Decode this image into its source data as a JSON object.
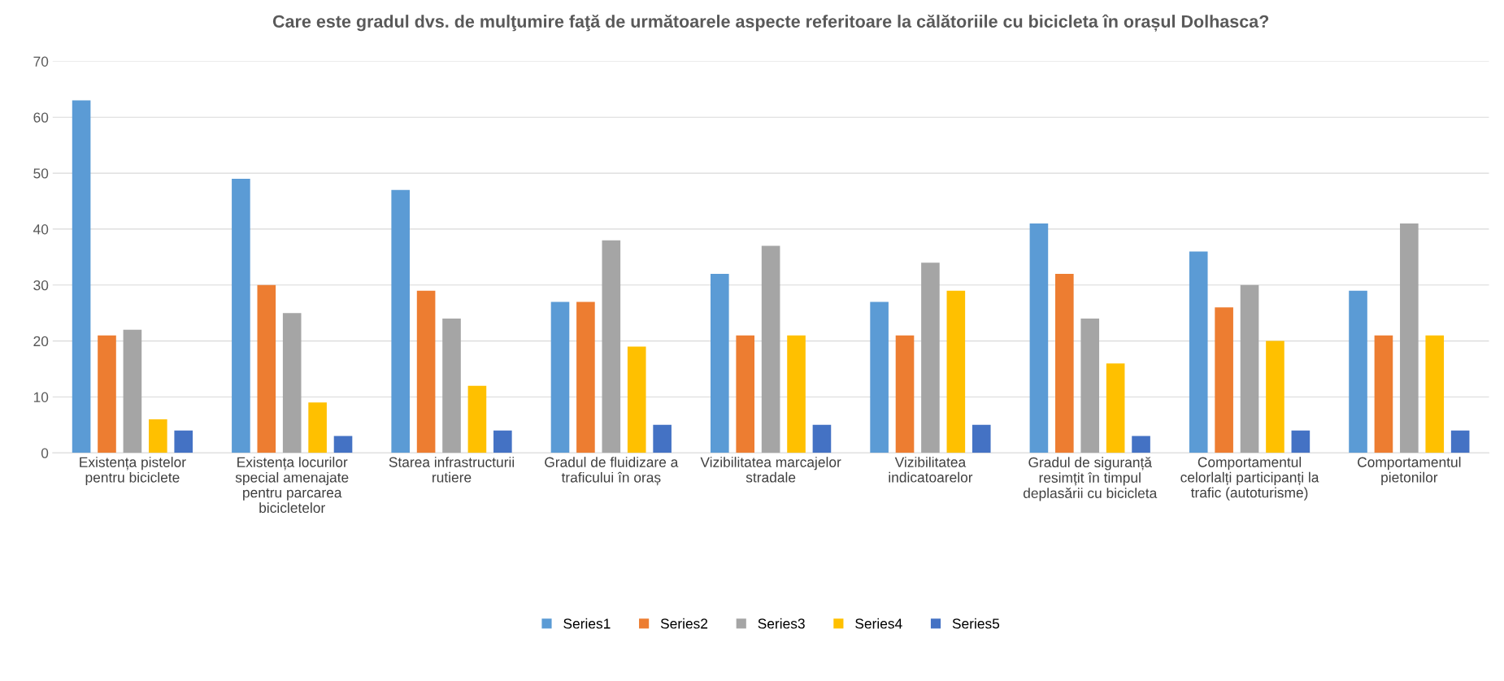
{
  "chart_data": {
    "type": "bar",
    "title": "Care este gradul dvs. de mulţumire faţă de următoarele aspecte referitoare la călătoriile cu bicicleta în orașul Dolhasca?",
    "categories": [
      "Existența pistelor\npentru biciclete",
      "Existența locurilor\nspecial amenajate\npentru parcarea\nbicicletelor",
      "Starea infrastructurii\nrutiere",
      "Gradul de fluidizare a\ntraficului în oraș",
      "Vizibilitatea marcajelor\nstradale",
      "Vizibilitatea\nindicatoarelor",
      "Gradul de siguranță\nresimțit în timpul\ndeplasării cu bicicleta",
      "Comportamentul\ncelorlalți participanți la\ntrafic (autoturisme)",
      "Comportamentul\npietonilor"
    ],
    "series": [
      {
        "name": "Series1",
        "color": "#5b9bd5",
        "values": [
          63,
          49,
          47,
          27,
          32,
          27,
          41,
          36,
          29
        ]
      },
      {
        "name": "Series2",
        "color": "#ed7d31",
        "values": [
          21,
          30,
          29,
          27,
          21,
          21,
          32,
          26,
          21
        ]
      },
      {
        "name": "Series3",
        "color": "#a5a5a5",
        "values": [
          22,
          25,
          24,
          38,
          37,
          34,
          24,
          30,
          41
        ]
      },
      {
        "name": "Series4",
        "color": "#ffc000",
        "values": [
          6,
          9,
          12,
          19,
          21,
          29,
          16,
          20,
          21
        ]
      },
      {
        "name": "Series5",
        "color": "#4472c4",
        "values": [
          4,
          3,
          4,
          5,
          5,
          5,
          3,
          4,
          4
        ]
      }
    ],
    "ylim": [
      0,
      70
    ],
    "yticks": [
      0,
      10,
      20,
      30,
      40,
      50,
      60,
      70
    ],
    "grid": "y",
    "legend": "bottom"
  }
}
